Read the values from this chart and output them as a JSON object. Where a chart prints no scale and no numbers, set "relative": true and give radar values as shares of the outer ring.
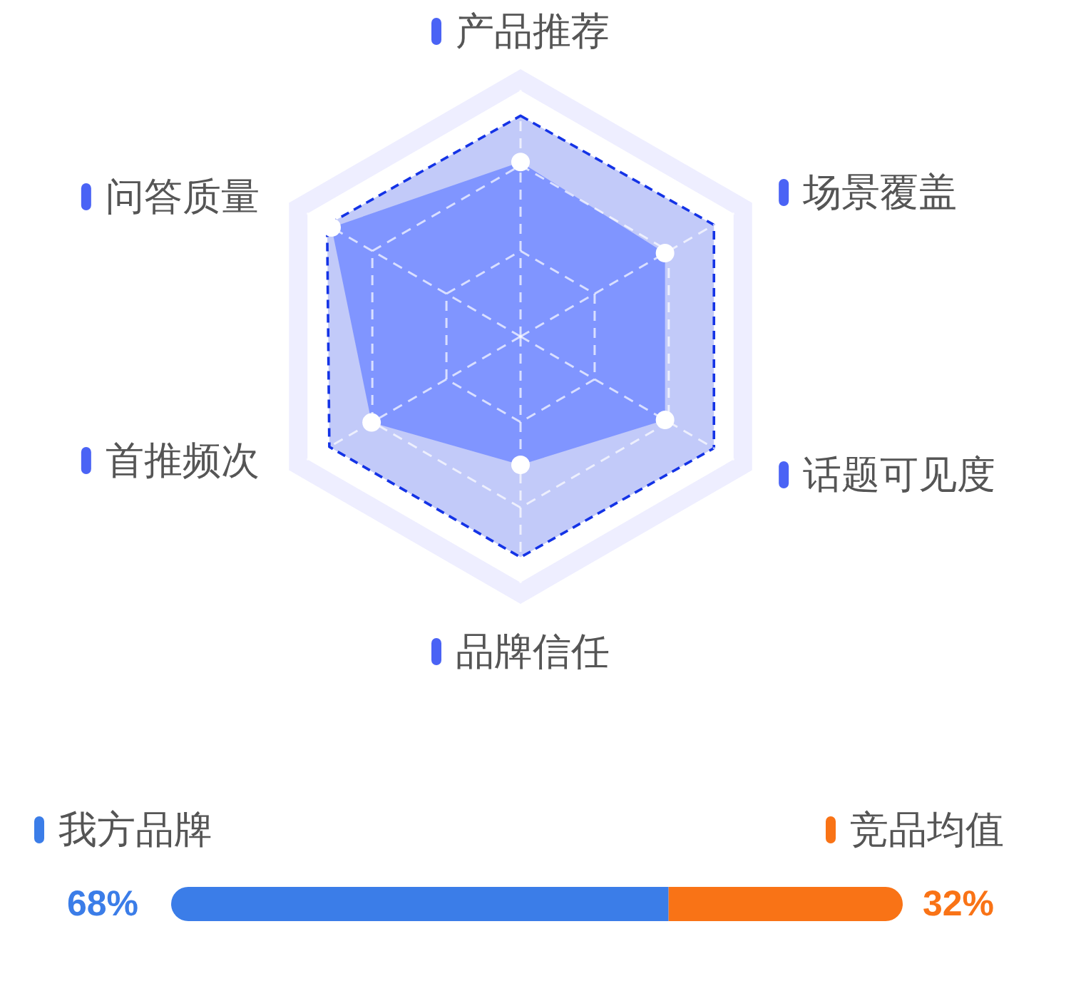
{
  "chart_data": [
    {
      "type": "radar",
      "categories": [
        "产品推荐",
        "场景覆盖",
        "话题可见度",
        "品牌信任",
        "首推频次",
        "问答质量"
      ],
      "relative": true,
      "grid": true,
      "series": [
        {
          "line_style": "dashed",
          "color": "#1433e6",
          "values": [
            0.86,
            0.87,
            0.87,
            0.86,
            0.86,
            0.87
          ]
        },
        {
          "marker": "circle",
          "color": "#8095ff",
          "values": [
            0.68,
            0.65,
            0.65,
            0.5,
            0.67,
            0.85
          ]
        }
      ]
    },
    {
      "type": "bar",
      "orientation": "horizontal",
      "stacked": true,
      "categories": [
        null
      ],
      "xlim": [
        0,
        100
      ],
      "tick_labels": false,
      "legend": "top",
      "series": [
        {
          "name": "我方品牌",
          "color": "#3b7de8",
          "values": [
            68
          ],
          "value_labels": [
            "68%"
          ]
        },
        {
          "name": "竞品均值",
          "color": "#f97316",
          "values": [
            32
          ],
          "value_labels": [
            "32%"
          ]
        }
      ]
    }
  ]
}
